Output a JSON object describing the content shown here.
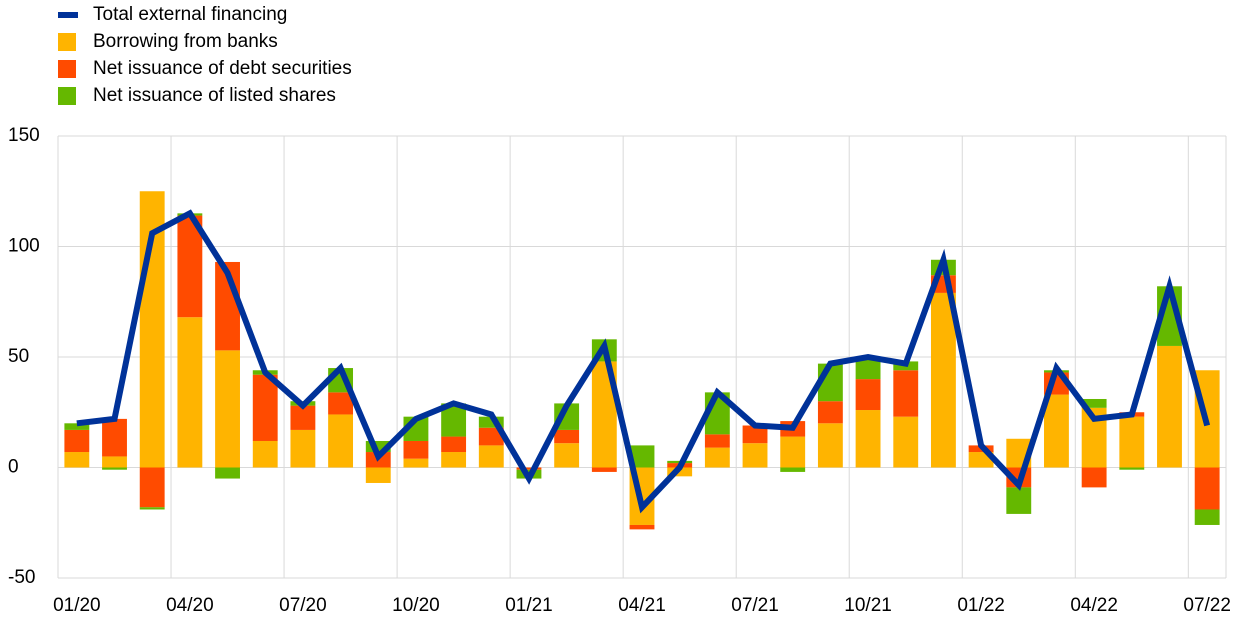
{
  "chart_data": {
    "type": "bar",
    "stacked": true,
    "categories": [
      "01/20",
      null,
      null,
      "04/20",
      null,
      null,
      "07/20",
      null,
      null,
      "10/20",
      null,
      null,
      "01/21",
      null,
      null,
      "04/21",
      null,
      null,
      "07/21",
      null,
      null,
      "10/21",
      null,
      null,
      "01/22",
      null,
      null,
      "04/22",
      null,
      null,
      "07/22"
    ],
    "series": [
      {
        "name": "Total external financing",
        "type": "line",
        "color": "#003299",
        "values": [
          20,
          22,
          106,
          115,
          88,
          43,
          28,
          45,
          5,
          22,
          29,
          24,
          -5,
          28,
          55,
          -18,
          0,
          34,
          19,
          18,
          47,
          50,
          47,
          94,
          10,
          -8,
          45,
          22,
          24,
          82,
          19
        ]
      },
      {
        "name": "Borrowing from banks",
        "type": "bar",
        "color": "#ffb400",
        "values": [
          7,
          5,
          125,
          68,
          53,
          12,
          17,
          24,
          -7,
          4,
          7,
          10,
          0,
          11,
          48,
          -26,
          -4,
          9,
          11,
          14,
          20,
          26,
          23,
          79,
          7,
          13,
          33,
          27,
          23,
          55,
          44
        ]
      },
      {
        "name": "Net issuance of debt securities",
        "type": "bar",
        "color": "#ff4b00",
        "values": [
          10,
          17,
          -18,
          46,
          40,
          30,
          11,
          10,
          7,
          8,
          7,
          8,
          -1,
          6,
          -2,
          -2,
          2,
          6,
          8,
          7,
          10,
          14,
          21,
          8,
          3,
          -9,
          10,
          -9,
          2,
          0,
          -19
        ]
      },
      {
        "name": "Net issuance of listed shares",
        "type": "bar",
        "color": "#65b800",
        "values": [
          3,
          -1,
          -1,
          1,
          -5,
          2,
          2,
          11,
          5,
          11,
          15,
          5,
          -4,
          12,
          10,
          10,
          1,
          19,
          0,
          -2,
          17,
          10,
          4,
          7,
          0,
          -12,
          1,
          4,
          -1,
          27,
          -7
        ]
      }
    ],
    "ylim": [
      -50,
      150
    ],
    "yticks": [
      -50,
      0,
      50,
      100,
      150
    ],
    "grid": true
  }
}
